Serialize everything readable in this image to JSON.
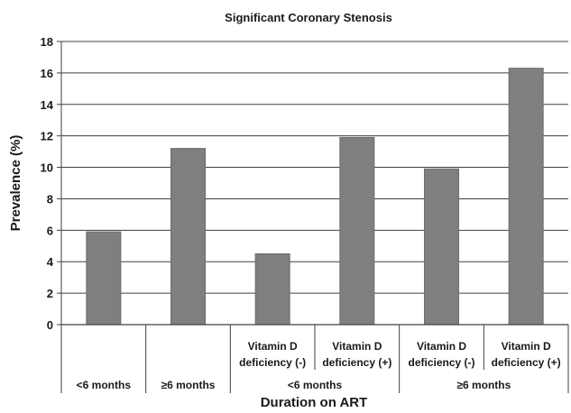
{
  "chart_data": {
    "type": "bar",
    "title": "Significant Coronary Stenosis",
    "xlabel": "Duration on ART",
    "ylabel": "Prevalence (%)",
    "ylim": [
      0,
      18
    ],
    "yticks": [
      "0",
      "2",
      "4",
      "6",
      "8",
      "10",
      "12",
      "14",
      "16",
      "18"
    ],
    "grid": true,
    "categories": [
      [
        "<6 months"
      ],
      [
        "≥6 months"
      ],
      [
        "Vitamin D",
        "deficiency (-)"
      ],
      [
        "Vitamin D",
        "deficiency (+)"
      ],
      [
        "Vitamin D",
        "deficiency (-)"
      ],
      [
        "Vitamin D",
        "deficiency (+)"
      ]
    ],
    "groups": [
      "<6 months",
      "≥6 months"
    ],
    "values": [
      5.9,
      11.2,
      4.5,
      11.9,
      9.9,
      16.3
    ],
    "colors": {
      "bar": "#7f7f7f",
      "bar_edge": "#6b6b6b",
      "axis": "#404040",
      "grid": "#404040",
      "text": "#1a1a1a"
    }
  }
}
